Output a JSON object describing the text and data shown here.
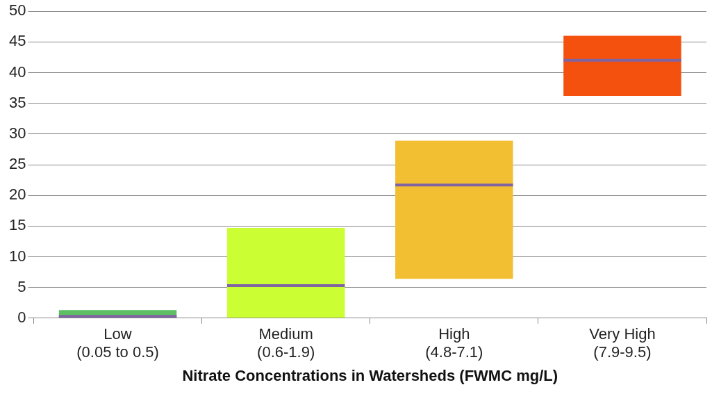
{
  "chart_data": {
    "type": "box",
    "xlabel": "Nitrate Concentrations in Watersheds (FWMC mg/L)",
    "categories": [
      "Low\n(0.05 to 0.5)",
      "Medium\n(0.6-1.9)",
      "High\n(4.8-7.1)",
      "Very High\n(7.9-9.5)"
    ],
    "boxes": [
      {
        "low": 0,
        "q1": 0,
        "median": 0.3,
        "q3": 1.3,
        "high": 1.3
      },
      {
        "low": 0,
        "q1": 0,
        "median": 5.3,
        "q3": 14.7,
        "high": 14.7
      },
      {
        "low": 6.4,
        "q1": 6.4,
        "median": 21.7,
        "q3": 28.9,
        "high": 28.9
      },
      {
        "low": 36.2,
        "q1": 36.2,
        "median": 42,
        "q3": 46,
        "high": 46
      }
    ],
    "colors": [
      "#5cbf63",
      "#ccff33",
      "#f2be32",
      "#f4510f"
    ],
    "ylim": [
      0,
      50
    ],
    "yticks": [
      0,
      5,
      10,
      15,
      20,
      25,
      30,
      35,
      40,
      45,
      50
    ],
    "grid": "y"
  }
}
